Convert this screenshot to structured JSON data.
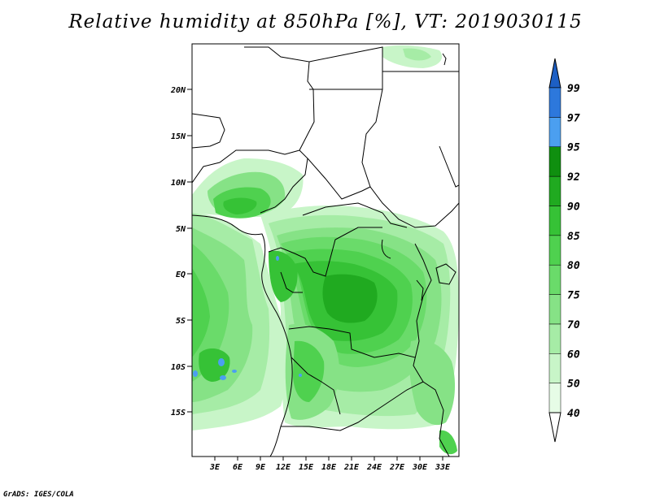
{
  "title": "Relative humidity at 850hPa [%], VT: 2019030115",
  "credit": "GrADS: IGES/COLA",
  "map": {
    "lon_range": [
      0,
      35
    ],
    "lat_range": [
      -20,
      25
    ],
    "x_ticks": [
      "3E",
      "6E",
      "9E",
      "12E",
      "15E",
      "18E",
      "21E",
      "24E",
      "27E",
      "30E",
      "33E"
    ],
    "y_ticks": [
      "20N",
      "15N",
      "10N",
      "5N",
      "EQ",
      "5S",
      "10S",
      "15S"
    ],
    "field": "Relative humidity at 850hPa"
  },
  "colorbar": {
    "levels": [
      "40",
      "50",
      "60",
      "70",
      "75",
      "80",
      "85",
      "90",
      "92",
      "95",
      "97",
      "99"
    ],
    "colors": [
      "#ffffff",
      "#e6fce6",
      "#c8f5c8",
      "#a6eca6",
      "#86e286",
      "#6adb6a",
      "#4fd14f",
      "#36c236",
      "#20aa20",
      "#0f8f0f",
      "#4b9ff0",
      "#2d78dc",
      "#1d5fc4"
    ]
  }
}
